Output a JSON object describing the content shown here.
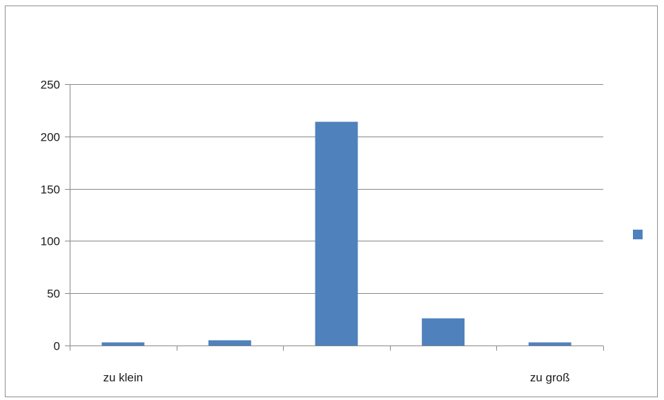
{
  "chart_data": {
    "type": "bar",
    "categories": [
      "zu klein",
      "",
      "",
      "",
      "zu groß"
    ],
    "values": [
      3,
      5,
      214,
      26,
      3
    ],
    "yticks": [
      0,
      50,
      100,
      150,
      200,
      250
    ],
    "ylim": [
      0,
      250
    ],
    "title": "",
    "xlabel": "",
    "ylabel": "",
    "grid": true,
    "legend": "right",
    "series": [
      {
        "values": [
          3,
          5,
          214,
          26,
          3
        ],
        "color": "#4f81bd"
      }
    ],
    "colors": {
      "bar": "#4f81bd",
      "grid": "#868686",
      "axis": "#868686",
      "frame": "#8c8c8c"
    }
  }
}
